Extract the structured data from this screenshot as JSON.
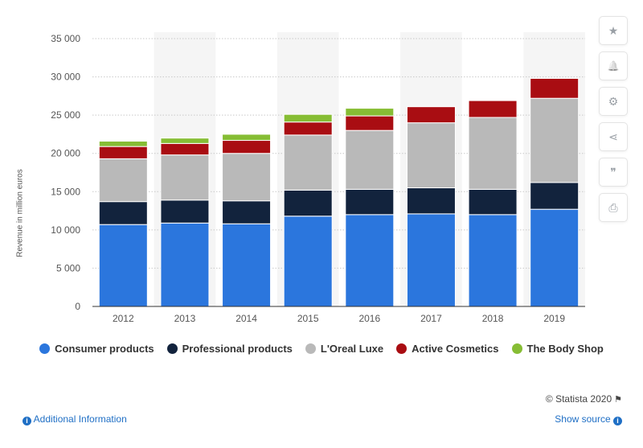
{
  "chart_data": {
    "type": "bar",
    "stacked": true,
    "categories": [
      "2012",
      "2013",
      "2014",
      "2015",
      "2016",
      "2017",
      "2018",
      "2019"
    ],
    "series": [
      {
        "name": "Consumer products",
        "color": "#2b76dd",
        "values": [
          10700,
          10900,
          10800,
          11800,
          12000,
          12100,
          12000,
          12700
        ]
      },
      {
        "name": "Professional products",
        "color": "#12233d",
        "values": [
          3000,
          3000,
          3000,
          3400,
          3300,
          3400,
          3300,
          3500
        ]
      },
      {
        "name": "L'Oreal Luxe",
        "color": "#b9b9b9",
        "values": [
          5600,
          5900,
          6200,
          7200,
          7700,
          8500,
          9400,
          11000
        ]
      },
      {
        "name": "Active Cosmetics",
        "color": "#a90d12",
        "values": [
          1600,
          1500,
          1700,
          1700,
          1900,
          2100,
          2200,
          2600
        ]
      },
      {
        "name": "The Body Shop",
        "color": "#86bd34",
        "values": [
          700,
          700,
          800,
          1000,
          1000,
          0,
          0,
          0
        ]
      }
    ],
    "ylabel": "Revenue in million euros",
    "xlabel": "",
    "ylim": [
      0,
      35000
    ],
    "yticks": [
      0,
      5000,
      10000,
      15000,
      20000,
      25000,
      30000,
      35000
    ],
    "ytick_labels": [
      "0",
      "5 000",
      "10 000",
      "15 000",
      "20 000",
      "25 000",
      "30 000",
      "35 000"
    ],
    "grid": true,
    "legend_position": "bottom"
  },
  "toolbar": {
    "star_icon": "★",
    "bell_icon": "🔔",
    "gear_icon": "⚙",
    "share_icon": "⋖",
    "quote_icon": "❞",
    "print_icon": "⎙"
  },
  "footer": {
    "credit": "© Statista 2020",
    "flag_icon": "⚑",
    "info_icon": "i",
    "additional_info": "Additional Information",
    "show_source": "Show source",
    "source_icon": "i"
  }
}
